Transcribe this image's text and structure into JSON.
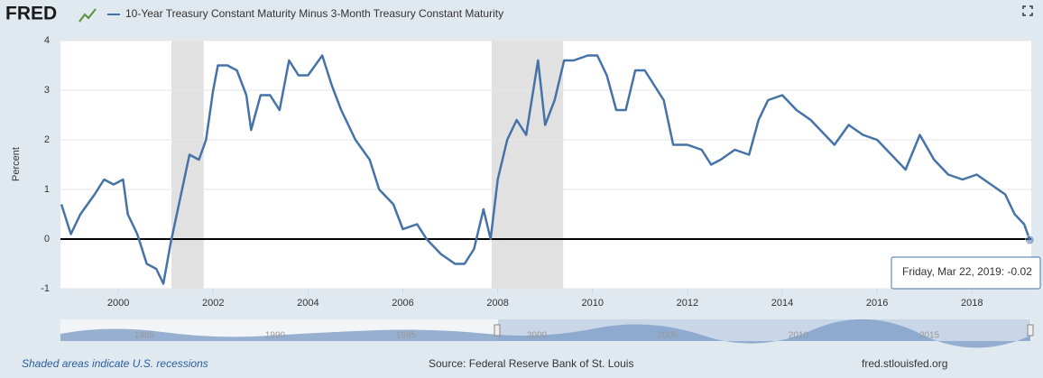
{
  "header": {
    "logo": "FRED",
    "legend": "10-Year Treasury Constant Maturity Minus 3-Month Treasury Constant Maturity"
  },
  "chart_data": {
    "type": "line",
    "y_label": "Percent",
    "xlim": [
      1998.78,
      2019.25
    ],
    "xticks": [
      2000,
      2002,
      2004,
      2006,
      2008,
      2010,
      2012,
      2014,
      2016,
      2018
    ],
    "ylim": [
      -1,
      4
    ],
    "yticks": [
      -1,
      0,
      1,
      2,
      3,
      4
    ],
    "grid": true,
    "recessions": [
      [
        2001.12,
        2001.8
      ],
      [
        2007.87,
        2009.38
      ]
    ],
    "series": [
      {
        "name": "10-Year Treasury Constant Maturity Minus 3-Month Treasury Constant Maturity",
        "color": "#4572a7",
        "x": [
          1998.8,
          1999.0,
          1999.2,
          1999.5,
          1999.7,
          1999.9,
          2000.1,
          2000.2,
          2000.4,
          2000.6,
          2000.8,
          2000.95,
          2001.1,
          2001.3,
          2001.5,
          2001.7,
          2001.85,
          2002.0,
          2002.1,
          2002.3,
          2002.5,
          2002.7,
          2002.8,
          2003.0,
          2003.2,
          2003.4,
          2003.6,
          2003.8,
          2004.0,
          2004.3,
          2004.5,
          2004.7,
          2005.0,
          2005.3,
          2005.5,
          2005.8,
          2006.0,
          2006.3,
          2006.5,
          2006.8,
          2007.1,
          2007.3,
          2007.5,
          2007.7,
          2007.85,
          2008.0,
          2008.2,
          2008.4,
          2008.6,
          2008.85,
          2009.0,
          2009.2,
          2009.4,
          2009.6,
          2009.9,
          2010.1,
          2010.3,
          2010.5,
          2010.7,
          2010.9,
          2011.1,
          2011.3,
          2011.5,
          2011.7,
          2012.0,
          2012.3,
          2012.5,
          2012.7,
          2013.0,
          2013.3,
          2013.5,
          2013.7,
          2014.0,
          2014.3,
          2014.6,
          2014.9,
          2015.1,
          2015.4,
          2015.7,
          2016.0,
          2016.3,
          2016.6,
          2016.9,
          2017.2,
          2017.5,
          2017.8,
          2018.1,
          2018.4,
          2018.7,
          2018.9,
          2019.1,
          2019.22
        ],
        "values": [
          0.7,
          0.1,
          0.5,
          0.9,
          1.2,
          1.1,
          1.2,
          0.5,
          0.1,
          -0.5,
          -0.6,
          -0.9,
          -0.1,
          0.8,
          1.7,
          1.6,
          2.0,
          3.0,
          3.5,
          3.5,
          3.4,
          2.9,
          2.2,
          2.9,
          2.9,
          2.6,
          3.6,
          3.3,
          3.3,
          3.7,
          3.1,
          2.6,
          2.0,
          1.6,
          1.0,
          0.7,
          0.2,
          0.3,
          0.0,
          -0.3,
          -0.5,
          -0.5,
          -0.2,
          0.6,
          0.0,
          1.2,
          2.0,
          2.4,
          2.1,
          3.6,
          2.3,
          2.8,
          3.6,
          3.6,
          3.7,
          3.7,
          3.3,
          2.6,
          2.6,
          3.4,
          3.4,
          3.1,
          2.8,
          1.9,
          1.9,
          1.8,
          1.5,
          1.6,
          1.8,
          1.7,
          2.4,
          2.8,
          2.9,
          2.6,
          2.4,
          2.1,
          1.9,
          2.3,
          2.1,
          2.0,
          1.7,
          1.4,
          2.1,
          1.6,
          1.3,
          1.2,
          1.3,
          1.1,
          0.9,
          0.5,
          0.3,
          -0.02
        ]
      }
    ],
    "tooltip": "Friday, Mar 22, 2019: -0.02",
    "navigator_labels": [
      "1985",
      "1990",
      "1995",
      "2000",
      "2005",
      "2010",
      "2015"
    ]
  },
  "footer": {
    "note": "Shaded areas indicate U.S. recessions",
    "source": "Source: Federal Reserve Bank of St. Louis",
    "site": "fred.stlouisfed.org"
  }
}
